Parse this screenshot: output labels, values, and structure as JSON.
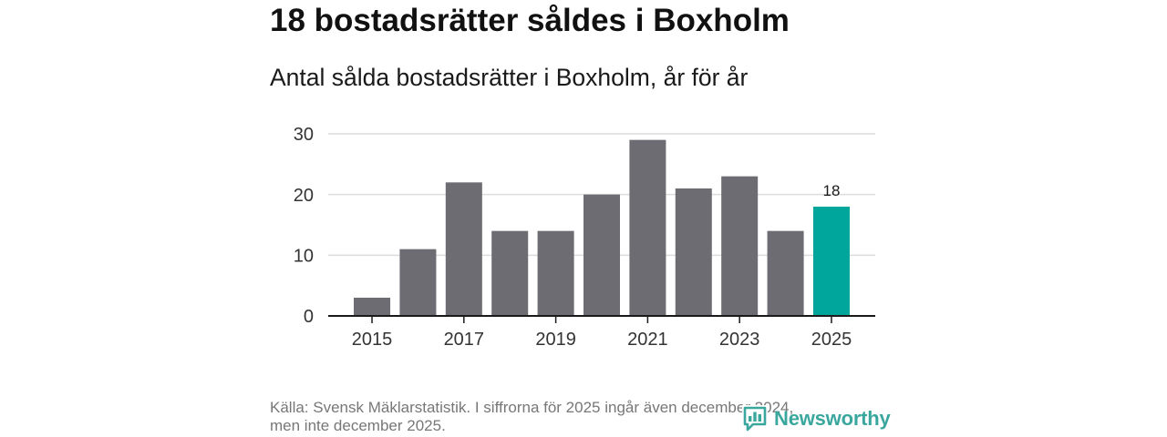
{
  "chart_data": {
    "type": "bar",
    "title": "18 bostadsrätter såldes i Boxholm",
    "subtitle": "Antal sålda bostadsrätter i Boxholm, år för år",
    "x": [
      2015,
      2016,
      2017,
      2018,
      2019,
      2020,
      2021,
      2022,
      2023,
      2024,
      2025
    ],
    "values": [
      3,
      11,
      22,
      14,
      14,
      20,
      29,
      21,
      23,
      14,
      18
    ],
    "xticks": [
      2015,
      2017,
      2019,
      2021,
      2023,
      2025
    ],
    "yticks": [
      0,
      10,
      20,
      30
    ],
    "ylim": [
      0,
      30
    ],
    "grid": true,
    "highlight": 2025,
    "data_labels": [
      {
        "x": 2025,
        "text": "18"
      }
    ],
    "colors": {
      "bar": "#6d6c72",
      "highlight": "#00a69c",
      "grid": "#dcdcdc",
      "axis": "#1a1a1a",
      "tick": "#1a1a1a"
    }
  },
  "source": {
    "lines": [
      "Källa: Svensk Mäklarstatistik. I siffrorna för 2025 ingår även december 2024,",
      "men inte december 2025."
    ]
  },
  "logo": {
    "text": "Newsworthy",
    "icon": "newsworthy-logo-icon",
    "color": "#3aa79e"
  }
}
